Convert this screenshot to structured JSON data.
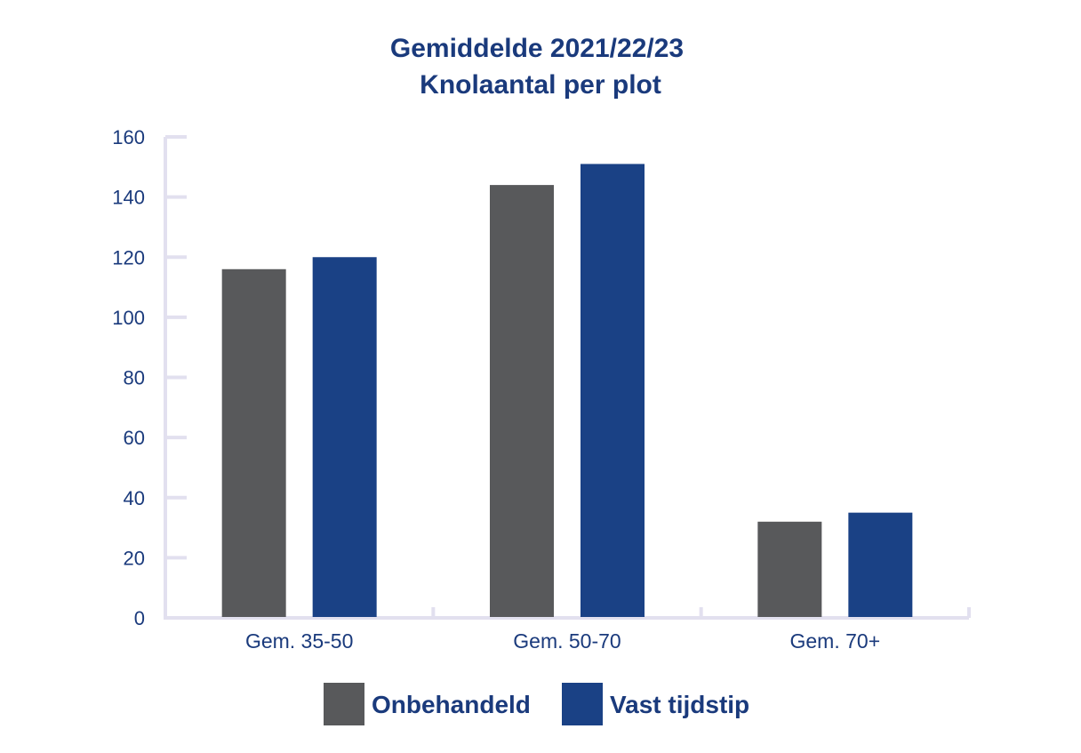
{
  "chart_data": {
    "type": "bar",
    "title": "Gemiddelde 2021/22/23",
    "subtitle": "Knolaantal per plot",
    "xlabel": "",
    "ylabel": "",
    "categories": [
      "Gem. 35-50",
      "Gem. 50-70",
      "Gem. 70+"
    ],
    "series": [
      {
        "name": "Onbehandeld",
        "values": [
          116,
          144,
          32
        ],
        "color": "#58595b"
      },
      {
        "name": "Vast tijdstip",
        "values": [
          120,
          151,
          35
        ],
        "color": "#1a4185"
      }
    ],
    "ylim": [
      0,
      160
    ],
    "yticks": [
      "0",
      "20",
      "40",
      "60",
      "80",
      "100",
      "120",
      "140",
      "160"
    ],
    "grid": false,
    "legend_position": "bottom-center",
    "colors": {
      "text": "#1a3a7c",
      "axis": "#e2e0ef"
    }
  }
}
